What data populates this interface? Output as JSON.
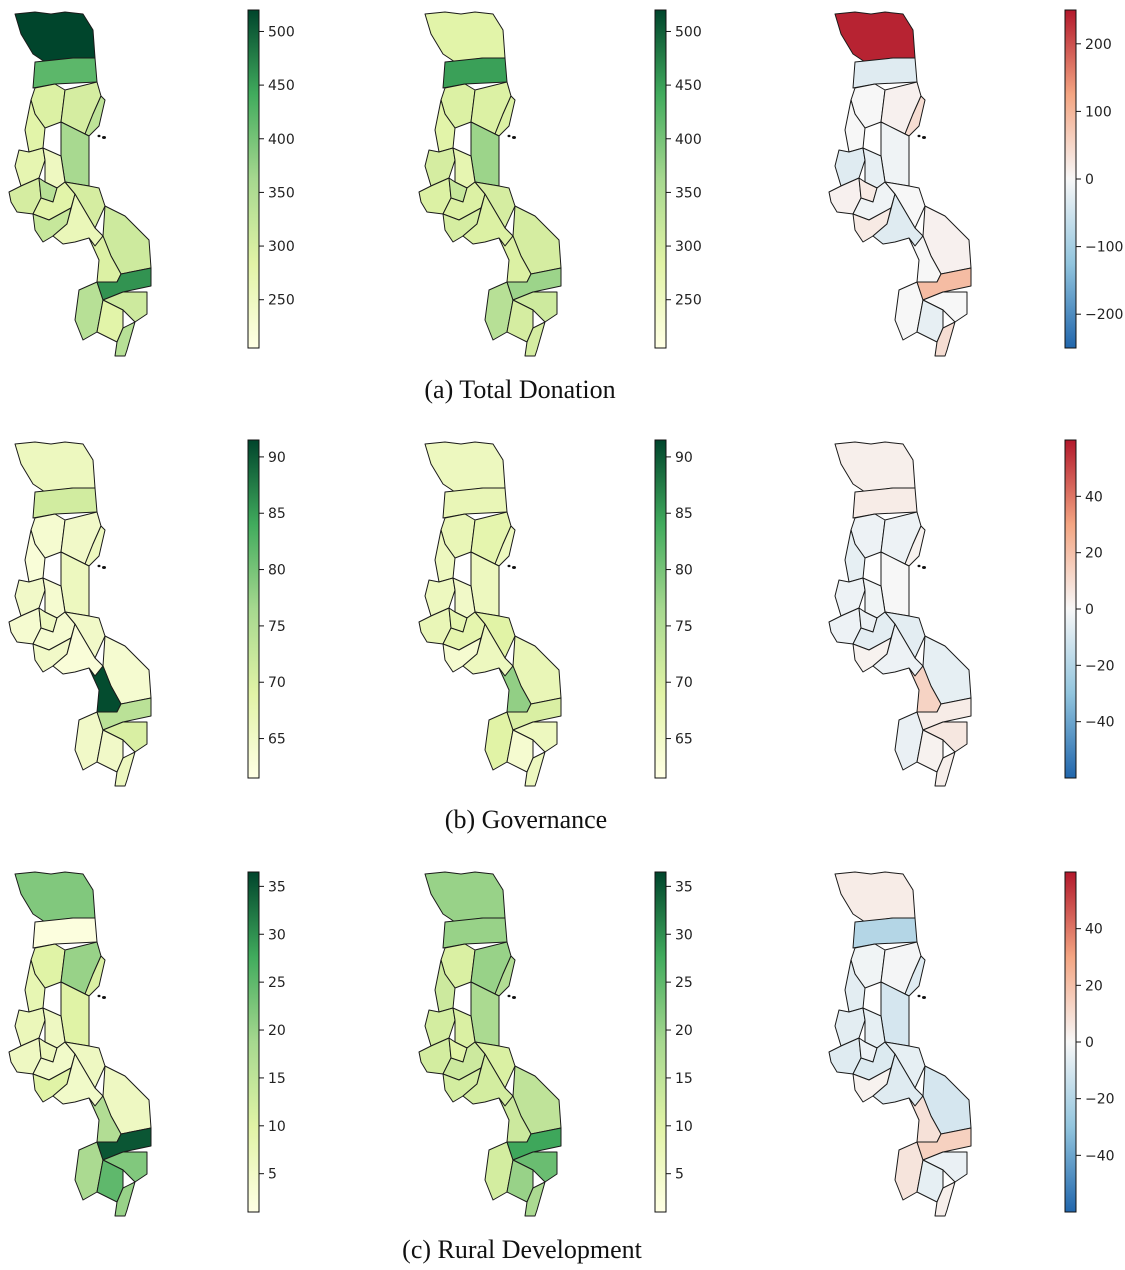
{
  "figure": {
    "rows": [
      {
        "caption": "(a) Total Donation",
        "panels": [
          {
            "kind": "value",
            "palette": "greens",
            "domain": [
              205,
              520
            ],
            "ticks": [
              "250",
              "300",
              "350",
              "400",
              "450",
              "500"
            ],
            "tick_values": [
              250,
              300,
              350,
              400,
              450,
              500
            ],
            "values": [
              520,
              420,
              290,
              300,
              330,
              360,
              280,
              270,
              250,
              300,
              340,
              280,
              300,
              320,
              260,
              310,
              290,
              340,
              460,
              310,
              280,
              340
            ]
          },
          {
            "kind": "value",
            "palette": "greens",
            "domain": [
              205,
              520
            ],
            "ticks": [
              "250",
              "300",
              "350",
              "400",
              "450",
              "500"
            ],
            "tick_values": [
              250,
              300,
              350,
              400,
              450,
              500
            ],
            "values": [
              280,
              450,
              290,
              290,
              290,
              370,
              280,
              300,
              270,
              290,
              320,
              290,
              300,
              300,
              290,
              300,
              290,
              340,
              370,
              310,
              300,
              300
            ]
          },
          {
            "kind": "diff",
            "palette": "rdbu",
            "domain": [
              -250,
              250
            ],
            "ticks": [
              "−200",
              "−100",
              "0",
              "100",
              "200"
            ],
            "tick_values": [
              -200,
              -100,
              0,
              100,
              200
            ],
            "values": [
              240,
              -30,
              0,
              10,
              40,
              -10,
              0,
              -30,
              -20,
              10,
              20,
              -10,
              0,
              20,
              -30,
              10,
              0,
              0,
              90,
              0,
              -20,
              40
            ]
          }
        ]
      },
      {
        "caption": "(b) Governance",
        "panels": [
          {
            "kind": "value",
            "palette": "greens",
            "domain": [
              61.5,
              91.5
            ],
            "ticks": [
              "65",
              "70",
              "75",
              "80",
              "85",
              "90"
            ],
            "tick_values": [
              65,
              70,
              75,
              80,
              85,
              90
            ],
            "values": [
              66,
              71,
              64,
              65,
              66,
              66,
              63,
              65,
              64,
              64,
              66,
              64,
              65,
              65,
              63,
              64,
              91,
              65,
              74,
              70,
              65,
              66
            ]
          },
          {
            "kind": "value",
            "palette": "greens",
            "domain": [
              61.5,
              91.5
            ],
            "ticks": [
              "65",
              "70",
              "75",
              "80",
              "85",
              "90"
            ],
            "tick_values": [
              65,
              70,
              75,
              80,
              85,
              90
            ],
            "values": [
              66,
              67,
              67,
              68,
              66,
              66,
              66,
              66,
              65,
              67,
              68,
              68,
              69,
              64,
              66,
              67,
              78,
              69,
              70,
              66,
              64,
              66
            ]
          },
          {
            "kind": "diff",
            "palette": "rdbu",
            "domain": [
              -60,
              60
            ],
            "ticks": [
              "−40",
              "−20",
              "0",
              "20",
              "40"
            ],
            "tick_values": [
              -40,
              -20,
              0,
              20,
              40
            ],
            "values": [
              3,
              4,
              -3,
              -3,
              2,
              0,
              -5,
              -3,
              -2,
              -3,
              -4,
              -6,
              -6,
              2,
              -3,
              -5,
              13,
              -4,
              4,
              6,
              2,
              3
            ]
          }
        ]
      },
      {
        "caption": "(c) Rural Development",
        "panels": [
          {
            "kind": "value",
            "palette": "greens",
            "domain": [
              1,
              36.5
            ],
            "ticks": [
              "5",
              "10",
              "15",
              "20",
              "25",
              "30",
              "35"
            ],
            "tick_values": [
              5,
              10,
              15,
              20,
              25,
              30,
              35
            ],
            "values": [
              22,
              2,
              10,
              20,
              11,
              10,
              8,
              7,
              6,
              6,
              7,
              5,
              6,
              10,
              5,
              6,
              17,
              18,
              35,
              22,
              25,
              20
            ]
          },
          {
            "kind": "value",
            "palette": "greens",
            "domain": [
              1,
              36.5
            ],
            "ticks": [
              "5",
              "10",
              "15",
              "20",
              "25",
              "30",
              "35"
            ],
            "tick_values": [
              5,
              10,
              15,
              20,
              25,
              30,
              35
            ],
            "values": [
              20,
              20,
              11,
              20,
              17,
              18,
              13,
              12,
              11,
              12,
              10,
              13,
              11,
              12,
              12,
              15,
              13,
              12,
              28,
              24,
              20,
              18
            ]
          },
          {
            "kind": "diff",
            "palette": "rdbu",
            "domain": [
              -60,
              60
            ],
            "ticks": [
              "−40",
              "−20",
              "0",
              "20",
              "40"
            ],
            "tick_values": [
              -40,
              -20,
              0,
              20,
              40
            ],
            "values": [
              4,
              -20,
              -2,
              -1,
              -7,
              -10,
              -6,
              -6,
              -5,
              -7,
              -3,
              -8,
              -5,
              2,
              -7,
              -10,
              8,
              7,
              14,
              -4,
              -5,
              3
            ]
          }
        ]
      }
    ]
  }
}
